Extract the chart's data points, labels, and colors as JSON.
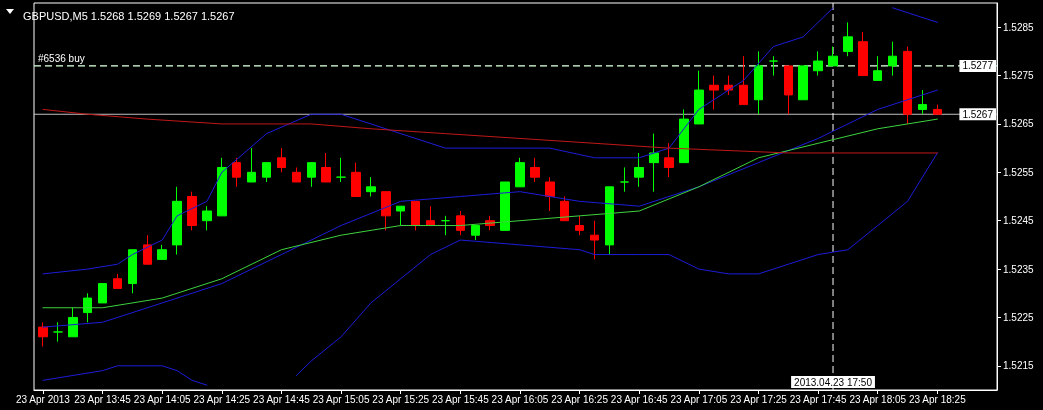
{
  "chart_data": {
    "type": "candlestick",
    "title": "GBPUSD,M5 1.5268 1.5269 1.5267 1.5267",
    "x": [
      "2013-04-23T13:25",
      "2013-04-23T13:30",
      "2013-04-23T13:35",
      "2013-04-23T13:40",
      "2013-04-23T13:45",
      "2013-04-23T13:50",
      "2013-04-23T13:55",
      "2013-04-23T14:00",
      "2013-04-23T14:05",
      "2013-04-23T14:10",
      "2013-04-23T14:15",
      "2013-04-23T14:20",
      "2013-04-23T14:25",
      "2013-04-23T14:30",
      "2013-04-23T14:35",
      "2013-04-23T14:40",
      "2013-04-23T14:45",
      "2013-04-23T14:50",
      "2013-04-23T14:55",
      "2013-04-23T15:00",
      "2013-04-23T15:05",
      "2013-04-23T15:10",
      "2013-04-23T15:15",
      "2013-04-23T15:20",
      "2013-04-23T15:25",
      "2013-04-23T15:30",
      "2013-04-23T15:35",
      "2013-04-23T15:40",
      "2013-04-23T15:45",
      "2013-04-23T15:50",
      "2013-04-23T15:55",
      "2013-04-23T16:00",
      "2013-04-23T16:05",
      "2013-04-23T16:10",
      "2013-04-23T16:15",
      "2013-04-23T16:20",
      "2013-04-23T16:25",
      "2013-04-23T16:30",
      "2013-04-23T16:35",
      "2013-04-23T16:40",
      "2013-04-23T16:45",
      "2013-04-23T16:50",
      "2013-04-23T16:55",
      "2013-04-23T17:00",
      "2013-04-23T17:05",
      "2013-04-23T17:10",
      "2013-04-23T17:15",
      "2013-04-23T17:20",
      "2013-04-23T17:25",
      "2013-04-23T17:30",
      "2013-04-23T17:35",
      "2013-04-23T17:40",
      "2013-04-23T17:45",
      "2013-04-23T17:50",
      "2013-04-23T17:55",
      "2013-04-23T18:00",
      "2013-04-23T18:05",
      "2013-04-23T18:10",
      "2013-04-23T18:15",
      "2013-04-23T18:20",
      "2013-04-23T18:25"
    ],
    "ohlc": [
      [
        1.5223,
        1.5224,
        1.5219,
        1.5221
      ],
      [
        1.5222,
        1.5224,
        1.522,
        1.5222
      ],
      [
        1.5221,
        1.5227,
        1.5221,
        1.5225
      ],
      [
        1.5226,
        1.523,
        1.5224,
        1.5229
      ],
      [
        1.5228,
        1.5232,
        1.5228,
        1.5232
      ],
      [
        1.5233,
        1.5234,
        1.5231,
        1.5231
      ],
      [
        1.5232,
        1.5239,
        1.523,
        1.5239
      ],
      [
        1.524,
        1.5242,
        1.5236,
        1.5236
      ],
      [
        1.5237,
        1.524,
        1.5237,
        1.5239
      ],
      [
        1.524,
        1.5252,
        1.5238,
        1.5249
      ],
      [
        1.525,
        1.5251,
        1.5243,
        1.5244
      ],
      [
        1.5245,
        1.5248,
        1.5243,
        1.5247
      ],
      [
        1.5246,
        1.5258,
        1.5246,
        1.5256
      ],
      [
        1.5257,
        1.5258,
        1.5252,
        1.5254
      ],
      [
        1.5253,
        1.526,
        1.5253,
        1.5255
      ],
      [
        1.5254,
        1.5257,
        1.5253,
        1.5257
      ],
      [
        1.5258,
        1.526,
        1.5255,
        1.5256
      ],
      [
        1.5255,
        1.5256,
        1.5253,
        1.5253
      ],
      [
        1.5254,
        1.5257,
        1.5252,
        1.5257
      ],
      [
        1.5256,
        1.5259,
        1.5253,
        1.5253
      ],
      [
        1.5254,
        1.5258,
        1.5253,
        1.5254
      ],
      [
        1.5255,
        1.5257,
        1.525,
        1.525
      ],
      [
        1.5251,
        1.5254,
        1.525,
        1.5252
      ],
      [
        1.5251,
        1.5251,
        1.5243,
        1.5246
      ],
      [
        1.5247,
        1.5248,
        1.5244,
        1.5248
      ],
      [
        1.5249,
        1.5249,
        1.5243,
        1.5244
      ],
      [
        1.5245,
        1.5248,
        1.5244,
        1.5244
      ],
      [
        1.5245,
        1.5246,
        1.5242,
        1.5245
      ],
      [
        1.5246,
        1.5247,
        1.5242,
        1.5243
      ],
      [
        1.5242,
        1.5244,
        1.5241,
        1.5244
      ],
      [
        1.5245,
        1.5246,
        1.5243,
        1.5244
      ],
      [
        1.5243,
        1.5253,
        1.5243,
        1.5253
      ],
      [
        1.5252,
        1.5258,
        1.5252,
        1.5257
      ],
      [
        1.5256,
        1.5258,
        1.5253,
        1.5254
      ],
      [
        1.5253,
        1.5254,
        1.5247,
        1.525
      ],
      [
        1.5249,
        1.525,
        1.5245,
        1.5245
      ],
      [
        1.5244,
        1.5246,
        1.5242,
        1.5243
      ],
      [
        1.5242,
        1.5245,
        1.5237,
        1.5241
      ],
      [
        1.524,
        1.5252,
        1.5238,
        1.5252
      ],
      [
        1.5253,
        1.5256,
        1.5251,
        1.5253
      ],
      [
        1.5254,
        1.5259,
        1.5252,
        1.5256
      ],
      [
        1.5257,
        1.5263,
        1.5251,
        1.5259
      ],
      [
        1.5258,
        1.5261,
        1.5254,
        1.5256
      ],
      [
        1.5257,
        1.5268,
        1.5257,
        1.5266
      ],
      [
        1.5265,
        1.5276,
        1.5265,
        1.5272
      ],
      [
        1.5273,
        1.5275,
        1.5268,
        1.5272
      ],
      [
        1.5273,
        1.5275,
        1.5271,
        1.5272
      ],
      [
        1.5273,
        1.5279,
        1.5269,
        1.5269
      ],
      [
        1.527,
        1.528,
        1.5267,
        1.5277
      ],
      [
        1.5278,
        1.5279,
        1.5275,
        1.5278
      ],
      [
        1.5277,
        1.5277,
        1.5267,
        1.5271
      ],
      [
        1.527,
        1.5277,
        1.527,
        1.5277
      ],
      [
        1.5276,
        1.528,
        1.5275,
        1.5278
      ],
      [
        1.5277,
        1.5281,
        1.5277,
        1.5279
      ],
      [
        1.528,
        1.5286,
        1.5279,
        1.5283
      ],
      [
        1.5282,
        1.5284,
        1.5275,
        1.5275
      ],
      [
        1.5274,
        1.5279,
        1.5274,
        1.5276
      ],
      [
        1.5277,
        1.5282,
        1.5275,
        1.5279
      ],
      [
        1.528,
        1.5281,
        1.5265,
        1.5267
      ],
      [
        1.5268,
        1.5272,
        1.5267,
        1.5269
      ],
      [
        1.5268,
        1.5269,
        1.5267,
        1.5267
      ]
    ],
    "colors": [
      "#ff0000",
      "#00ff00",
      "#00ff00",
      "#00ff00",
      "#00ff00",
      "#ff0000",
      "#00ff00",
      "#ff0000",
      "#00ff00",
      "#00ff00",
      "#ff0000",
      "#00ff00",
      "#00ff00",
      "#ff0000",
      "#00ff00",
      "#00ff00",
      "#ff0000",
      "#ff0000",
      "#00ff00",
      "#ff0000",
      "#00ff00",
      "#ff0000",
      "#00ff00",
      "#ff0000",
      "#00ff00",
      "#ff0000",
      "#ff0000",
      "#00ff00",
      "#ff0000",
      "#00ff00",
      "#ff0000",
      "#00ff00",
      "#00ff00",
      "#ff0000",
      "#ff0000",
      "#ff0000",
      "#ff0000",
      "#ff0000",
      "#00ff00",
      "#00ff00",
      "#00ff00",
      "#00ff00",
      "#ff0000",
      "#00ff00",
      "#00ff00",
      "#ff0000",
      "#ff0000",
      "#ff0000",
      "#00ff00",
      "#00ff00",
      "#ff0000",
      "#00ff00",
      "#00ff00",
      "#00ff00",
      "#00ff00",
      "#ff0000",
      "#00ff00",
      "#00ff00",
      "#ff0000",
      "#00ff00",
      "#ff0000"
    ],
    "xlim": [
      "2013-04-23T13:22",
      "2013-04-23T18:45"
    ],
    "xticks": [
      {
        "value": "2013-04-23T13:25",
        "label": "23 Apr 2013"
      },
      {
        "value": "2013-04-23T13:45",
        "label": "23 Apr 13:45"
      },
      {
        "value": "2013-04-23T14:05",
        "label": "23 Apr 14:05"
      },
      {
        "value": "2013-04-23T14:25",
        "label": "23 Apr 14:25"
      },
      {
        "value": "2013-04-23T14:45",
        "label": "23 Apr 14:45"
      },
      {
        "value": "2013-04-23T15:05",
        "label": "23 Apr 15:05"
      },
      {
        "value": "2013-04-23T15:25",
        "label": "23 Apr 15:25"
      },
      {
        "value": "2013-04-23T15:45",
        "label": "23 Apr 15:45"
      },
      {
        "value": "2013-04-23T16:05",
        "label": "23 Apr 16:05"
      },
      {
        "value": "2013-04-23T16:25",
        "label": "23 Apr 16:25"
      },
      {
        "value": "2013-04-23T16:45",
        "label": "23 Apr 16:45"
      },
      {
        "value": "2013-04-23T17:05",
        "label": "23 Apr 17:05"
      },
      {
        "value": "2013-04-23T17:25",
        "label": "23 Apr 17:25"
      },
      {
        "value": "2013-04-23T17:45",
        "label": "23 Apr 17:45"
      },
      {
        "value": "2013-04-23T18:05",
        "label": "23 Apr 18:05"
      },
      {
        "value": "2013-04-23T18:25",
        "label": "23 Apr 18:25"
      }
    ],
    "ylim": [
      1.521,
      1.529
    ],
    "yticks": [
      1.5215,
      1.5225,
      1.5235,
      1.5245,
      1.5255,
      1.5265,
      1.5275,
      1.5285
    ],
    "marker": "none",
    "series": [
      {
        "type": "line",
        "color": "#1c1cd8",
        "x": [
          "2013-04-23T13:25",
          "2013-04-23T13:40",
          "2013-04-23T13:50",
          "2013-04-23T13:55",
          "2013-04-23T14:05",
          "2013-04-23T14:10",
          "2013-04-23T14:20",
          "2013-04-23T14:25",
          "2013-04-23T14:40",
          "2013-04-23T14:55",
          "2013-04-23T15:05",
          "2013-04-23T15:25",
          "2013-04-23T15:40",
          "2013-04-23T16:05",
          "2013-04-23T16:15",
          "2013-04-23T16:30",
          "2013-04-23T16:45",
          "2013-04-23T16:55",
          "2013-04-23T17:05",
          "2013-04-23T17:20",
          "2013-04-23T17:30",
          "2013-04-23T17:40",
          "2013-04-23T17:50",
          "2013-04-23T17:55",
          "2013-04-23T18:05",
          "2013-04-23T18:10",
          "2013-04-23T18:15",
          "2013-04-23T18:25"
        ],
        "values": [
          1.5234,
          1.5235,
          1.5236,
          1.5238,
          1.5241,
          1.5246,
          1.5249,
          1.5255,
          1.5263,
          1.5267,
          1.5267,
          1.5263,
          1.526,
          1.526,
          1.526,
          1.5258,
          1.5258,
          1.526,
          1.5268,
          1.5274,
          1.5281,
          1.5283,
          1.5289,
          null,
          null,
          1.5289,
          1.5288,
          1.5286
        ]
      },
      {
        "type": "line",
        "color": "#1c1cd8",
        "x": [
          "2013-04-23T13:25",
          "2013-04-23T13:45",
          "2013-04-23T14:05",
          "2013-04-23T14:25",
          "2013-04-23T14:45",
          "2013-04-23T15:05",
          "2013-04-23T15:25",
          "2013-04-23T15:45",
          "2013-04-23T16:05",
          "2013-04-23T16:25",
          "2013-04-23T16:45",
          "2013-04-23T17:05",
          "2013-04-23T17:25",
          "2013-04-23T17:45",
          "2013-04-23T18:05",
          "2013-04-23T18:25"
        ],
        "values": [
          1.5223,
          1.5224,
          1.5228,
          1.5232,
          1.5238,
          1.5244,
          1.5249,
          1.525,
          1.5251,
          1.5249,
          1.5248,
          1.5252,
          1.5257,
          1.5262,
          1.5268,
          1.5272
        ]
      },
      {
        "type": "line",
        "color": "#1c1cd8",
        "x": [
          "2013-04-23T13:25",
          "2013-04-23T13:45",
          "2013-04-23T13:50",
          "2013-04-23T14:05",
          "2013-04-23T14:10",
          "2013-04-23T14:15",
          "2013-04-23T14:20",
          "2013-04-23T14:25",
          "2013-04-23T14:45",
          "2013-04-23T14:50",
          "2013-04-23T14:55",
          "2013-04-23T15:05",
          "2013-04-23T15:15",
          "2013-04-23T15:25",
          "2013-04-23T15:35",
          "2013-04-23T15:45",
          "2013-04-23T16:05",
          "2013-04-23T16:25",
          "2013-04-23T16:30",
          "2013-04-23T16:45",
          "2013-04-23T16:55",
          "2013-04-23T17:05",
          "2013-04-23T17:15",
          "2013-04-23T17:25",
          "2013-04-23T17:35",
          "2013-04-23T17:45",
          "2013-04-23T17:55",
          "2013-04-23T18:05",
          "2013-04-23T18:15",
          "2013-04-23T18:25"
        ],
        "values": [
          1.5212,
          1.5214,
          1.5215,
          1.5215,
          1.5214,
          1.5212,
          1.5211,
          null,
          null,
          1.5213,
          1.5216,
          1.5221,
          1.5228,
          1.5233,
          1.5238,
          1.5241,
          1.524,
          1.5239,
          1.5238,
          1.5238,
          1.5238,
          1.5235,
          1.5234,
          1.5234,
          1.5236,
          1.5238,
          1.5239,
          1.5244,
          1.5249,
          1.5259
        ]
      },
      {
        "type": "line",
        "color": "#3ed23e",
        "x": [
          "2013-04-23T13:25",
          "2013-04-23T13:45",
          "2013-04-23T14:05",
          "2013-04-23T14:25",
          "2013-04-23T14:45",
          "2013-04-23T15:05",
          "2013-04-23T15:25",
          "2013-04-23T15:45",
          "2013-04-23T16:05",
          "2013-04-23T16:25",
          "2013-04-23T16:45",
          "2013-04-23T17:05",
          "2013-04-23T17:25",
          "2013-04-23T17:45",
          "2013-04-23T18:05",
          "2013-04-23T18:25"
        ],
        "values": [
          1.5227,
          1.5227,
          1.5229,
          1.5233,
          1.5239,
          1.5242,
          1.5244,
          1.5244,
          1.5245,
          1.5246,
          1.5247,
          1.5252,
          1.5258,
          1.5261,
          1.5264,
          1.5266
        ]
      },
      {
        "type": "line",
        "color": "#c01818",
        "x": [
          "2013-04-23T13:25",
          "2013-04-23T13:40",
          "2013-04-23T14:00",
          "2013-04-23T14:25",
          "2013-04-23T14:55",
          "2013-04-23T15:15",
          "2013-04-23T15:40",
          "2013-04-23T16:05",
          "2013-04-23T16:55",
          "2013-04-23T17:35",
          "2013-04-23T18:25"
        ],
        "values": [
          1.5268,
          1.5267,
          1.5266,
          1.5265,
          1.5265,
          1.5264,
          1.5263,
          1.5262,
          1.526,
          1.5259,
          1.5259
        ]
      }
    ],
    "ref_lines": [
      {
        "axis": "y",
        "value": 1.5277,
        "label": "#6536 buy",
        "color": "#3cb043",
        "line_style": "dashed"
      },
      {
        "axis": "y",
        "value": 1.5277,
        "label": "1.5277",
        "color": "#ffffff",
        "line_style": "dashed"
      },
      {
        "axis": "y",
        "value": 1.5267,
        "label": "1.5267",
        "color": "#c0c0c0",
        "line_style": "solid"
      },
      {
        "axis": "x",
        "value": "2013-04-23T17:50",
        "label": "2013.04.23 17:50",
        "color": "#ffffff",
        "line_style": "dashed"
      }
    ]
  }
}
